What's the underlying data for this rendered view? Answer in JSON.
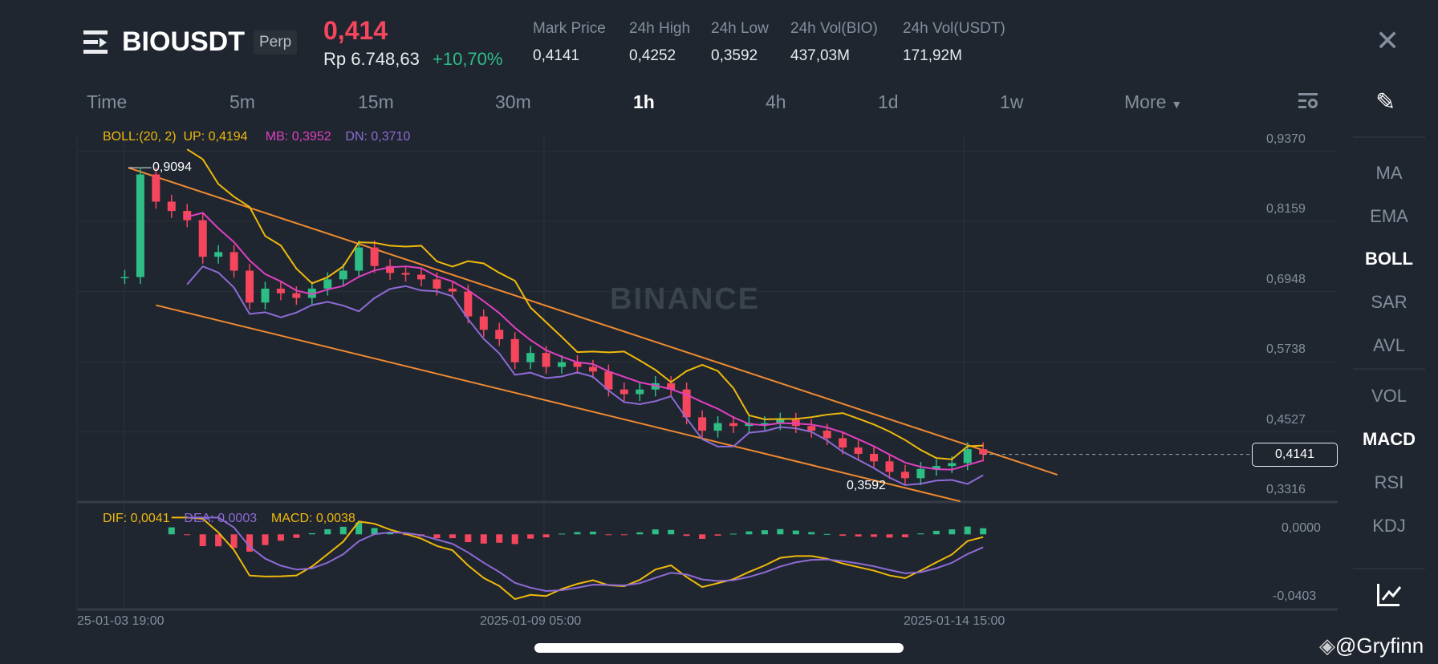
{
  "header": {
    "symbol": "BIOUSDT",
    "badge": "Perp",
    "last_price": "0,414",
    "idr_price": "Rp 6.748,63",
    "change": "+10,70%",
    "stats": [
      {
        "label": "Mark Price",
        "value": "0,4141"
      },
      {
        "label": "24h High",
        "value": "0,4252"
      },
      {
        "label": "24h Low",
        "value": "0,3592"
      },
      {
        "label": "24h Vol(BIO)",
        "value": "437,03M"
      },
      {
        "label": "24h Vol(USDT)",
        "value": "171,92M"
      }
    ],
    "close_icon": "close-icon",
    "menu_icon": "menu-icon"
  },
  "intervals": [
    {
      "label": "Time"
    },
    {
      "label": "5m"
    },
    {
      "label": "15m"
    },
    {
      "label": "30m"
    },
    {
      "label": "1h",
      "active": true
    },
    {
      "label": "4h"
    },
    {
      "label": "1d"
    },
    {
      "label": "1w"
    },
    {
      "label": "More"
    }
  ],
  "indicators_side": [
    "MA",
    "EMA",
    "BOLL",
    "SAR",
    "AVL",
    "VOL",
    "MACD",
    "RSI",
    "KDJ"
  ],
  "boll_legend": {
    "name": "BOLL:(20, 2)",
    "up": "UP: 0,4194",
    "mb": "MB: 0,3952",
    "dn": "DN: 0,3710"
  },
  "macd_legend": {
    "dif": "DIF: 0,0041",
    "dea": "DEA: 0,0003",
    "macd": "MACD: 0,0038"
  },
  "watermark": "BINANCE",
  "credit": "@Gryfinn",
  "colors": {
    "up": "#2ebd85",
    "down": "#f6465d",
    "boll_up": "#f0b90b",
    "boll_mb": "#e040c0",
    "boll_dn": "#8e6bd6",
    "trendline": "#f08a30"
  },
  "chart_data": {
    "type": "candlestick",
    "interval": "1h",
    "price_axis_ticks": [
      "0,9370",
      "0,8159",
      "0,6948",
      "0,5738",
      "0,4527",
      "0,3316"
    ],
    "macd_axis_ticks": [
      "0,0000",
      "-0,0403"
    ],
    "time_ticks": [
      "25-01-03 19:00",
      "2025-01-09 05:00",
      "2025-01-14 15:00"
    ],
    "high_marker": "0,9094",
    "low_marker": "0,3592",
    "current_price": "0,4141",
    "closes": [
      0.72,
      0.897,
      0.85,
      0.834,
      0.818,
      0.755,
      0.763,
      0.731,
      0.676,
      0.7,
      0.692,
      0.684,
      0.7,
      0.716,
      0.731,
      0.771,
      0.739,
      0.727,
      0.724,
      0.716,
      0.7,
      0.695,
      0.652,
      0.629,
      0.613,
      0.573,
      0.589,
      0.565,
      0.573,
      0.565,
      0.557,
      0.526,
      0.518,
      0.526,
      0.537,
      0.526,
      0.478,
      0.455,
      0.468,
      0.463,
      0.468,
      0.468,
      0.474,
      0.463,
      0.455,
      0.442,
      0.426,
      0.415,
      0.402,
      0.384,
      0.373,
      0.389,
      0.394,
      0.399,
      0.423,
      0.414
    ]
  }
}
